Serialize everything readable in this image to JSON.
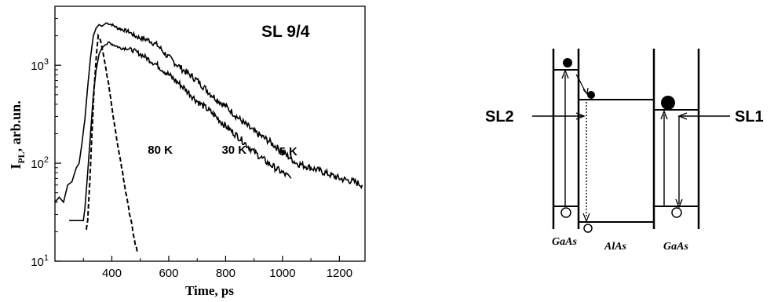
{
  "chart_data": {
    "type": "line",
    "title": "SL 9/4",
    "xlabel": "Time, ps",
    "ylabel_main": "I",
    "ylabel_sub": "PL",
    "ylabel_rest": ",  arb.un.",
    "x_scale": "linear",
    "y_scale": "log",
    "xlim": [
      200,
      1290
    ],
    "ylim": [
      10,
      4000
    ],
    "x_ticks": [
      "400",
      "600",
      "800",
      "1000",
      "1200"
    ],
    "y_ticks": [
      {
        "base": "10",
        "exp": "1",
        "value": 10
      },
      {
        "base": "10",
        "exp": "2",
        "value": 100
      },
      {
        "base": "10",
        "exp": "3",
        "value": 1000
      }
    ],
    "legend": "none",
    "grid": false,
    "series": [
      {
        "name": "5 K",
        "dash": "solid",
        "label_pos": [
          1020,
          120
        ],
        "x": [
          200,
          215,
          230,
          245,
          260,
          275,
          285,
          295,
          305,
          315,
          325,
          335,
          345,
          355,
          365,
          380,
          400,
          420,
          440,
          460,
          480,
          500,
          530,
          560,
          600,
          650,
          700,
          750,
          800,
          850,
          900,
          950,
          1000,
          1050,
          1100,
          1150,
          1200,
          1250,
          1280
        ],
        "y": [
          40,
          45,
          40,
          60,
          65,
          90,
          100,
          160,
          280,
          600,
          1200,
          2000,
          2400,
          2600,
          2500,
          2700,
          2600,
          2400,
          2300,
          2200,
          2000,
          1900,
          1800,
          1600,
          1200,
          900,
          700,
          500,
          380,
          280,
          210,
          170,
          130,
          100,
          90,
          80,
          70,
          65,
          60
        ]
      },
      {
        "name": "30 K",
        "dash": "solid",
        "label_pos": [
          830,
          125
        ],
        "x": [
          250,
          300,
          305,
          315,
          325,
          335,
          345,
          355,
          365,
          375,
          390,
          410,
          430,
          450,
          480,
          520,
          560,
          600,
          650,
          700,
          750,
          800,
          850,
          900,
          950,
          1000,
          1030
        ],
        "y": [
          26,
          26,
          34,
          80,
          200,
          500,
          900,
          1300,
          1500,
          1600,
          1700,
          1600,
          1500,
          1500,
          1400,
          1200,
          1000,
          800,
          600,
          430,
          330,
          240,
          180,
          130,
          100,
          80,
          70
        ]
      },
      {
        "name": "80 K",
        "dash": "dashed",
        "label_pos": [
          570,
          125
        ],
        "x": [
          310,
          315,
          322,
          330,
          338,
          346,
          352,
          360,
          370,
          380,
          392,
          405,
          420,
          435,
          450,
          465,
          480,
          490
        ],
        "y": [
          21,
          26,
          60,
          200,
          600,
          1300,
          2000,
          1800,
          1300,
          900,
          550,
          300,
          160,
          90,
          50,
          28,
          16,
          12
        ]
      }
    ],
    "band_diagram": {
      "labels": {
        "left": "SL2",
        "right": "SL1",
        "material_left": "GaAs",
        "material_middle": "AlAs",
        "material_right": "GaAs"
      }
    }
  }
}
